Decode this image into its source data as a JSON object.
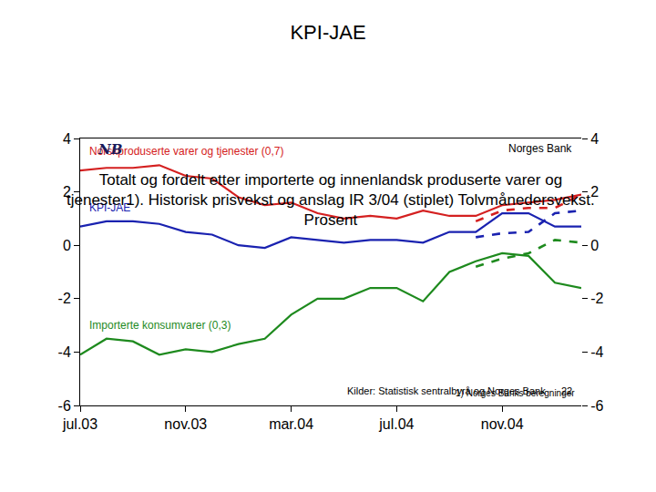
{
  "chart_data": {
    "type": "line",
    "header": "Norges Bank",
    "logo": "NB",
    "title": "KPI-JAE",
    "subtitle": [
      "Totalt og fordelt etter importerte og innenlandsk produserte varer og",
      "tjenester1). Historisk prisvekst og anslag IR 3/04 (stiplet) Tolvmånedersvekst.",
      "Prosent"
    ],
    "footnote": "1) Norges Banks beregninger",
    "source": "Kilder: Statistisk sentralbyrå og Norges Bank",
    "page": 22,
    "categories": [
      "jul.03",
      null,
      null,
      null,
      "nov.03",
      null,
      null,
      null,
      "mar.04",
      null,
      null,
      null,
      "jul.04",
      null,
      null,
      null,
      "nov.04",
      null,
      null,
      null
    ],
    "series": [
      {
        "name": "Norskproduserte varer og tjenester (0,7)",
        "color": "#d42020",
        "line_style": "solid",
        "values": [
          2.8,
          2.9,
          2.9,
          3.0,
          2.6,
          2.5,
          1.8,
          1.5,
          1.6,
          1.2,
          1.0,
          1.1,
          1.0,
          1.3,
          1.1,
          1.1,
          1.5,
          1.6,
          1.7,
          1.9
        ]
      },
      {
        "name": "KPI-JAE",
        "color": "#1a22b0",
        "line_style": "solid",
        "values": [
          0.7,
          0.9,
          0.9,
          0.8,
          0.5,
          0.4,
          0.0,
          -0.1,
          0.3,
          0.2,
          0.1,
          0.2,
          0.2,
          0.1,
          0.5,
          0.5,
          1.2,
          1.2,
          0.7,
          0.7
        ]
      },
      {
        "name": "Importerte konsumvarer (0,3)",
        "color": "#1e8a1e",
        "line_style": "solid",
        "values": [
          -4.1,
          -3.5,
          -3.6,
          -4.1,
          -3.9,
          -4.0,
          -3.7,
          -3.5,
          -2.6,
          -2.0,
          -2.0,
          -1.6,
          -1.6,
          -2.1,
          -1.0,
          -0.6,
          -0.3,
          -0.4,
          -1.4,
          -1.6
        ]
      },
      {
        "color": "#d42020",
        "line_style": "dashed",
        "values": [
          null,
          null,
          null,
          null,
          null,
          null,
          null,
          null,
          null,
          null,
          null,
          null,
          null,
          null,
          null,
          0.9,
          1.3,
          1.4,
          1.4,
          1.9
        ]
      },
      {
        "color": "#1a22b0",
        "line_style": "dashed",
        "values": [
          null,
          null,
          null,
          null,
          null,
          null,
          null,
          null,
          null,
          null,
          null,
          null,
          null,
          null,
          null,
          0.3,
          0.45,
          0.5,
          1.2,
          1.3
        ]
      },
      {
        "color": "#1e8a1e",
        "line_style": "dashed",
        "values": [
          null,
          null,
          null,
          null,
          null,
          null,
          null,
          null,
          null,
          null,
          null,
          null,
          null,
          null,
          null,
          -0.8,
          -0.5,
          -0.3,
          0.2,
          0.1
        ]
      }
    ],
    "ylim": [
      -6,
      4
    ],
    "yticks": [
      -6,
      -4,
      -2,
      0,
      2,
      4
    ],
    "y2lim": [
      -6,
      4
    ],
    "y2ticks": [
      -6,
      -4,
      -2,
      0,
      2,
      4
    ],
    "grid": false,
    "legend": "none"
  }
}
